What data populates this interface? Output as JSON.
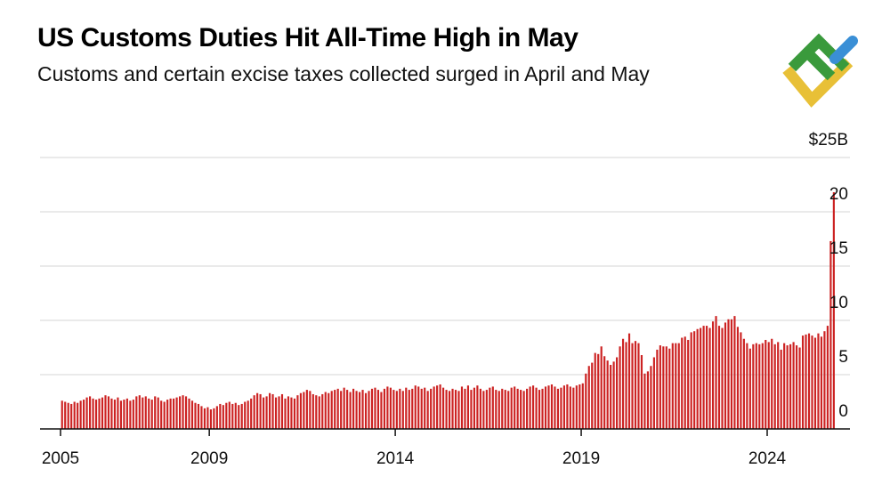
{
  "title": "US Customs Duties Hit All-Time High in May",
  "subtitle": "Customs and certain excise taxes collected surged in April and May",
  "logo": {
    "icon": "brand-logo-icon",
    "colors": [
      "#3a9a3c",
      "#e8c037",
      "#3a8fd6"
    ]
  },
  "chart_data": {
    "type": "bar",
    "title": "US Customs Duties Hit All-Time High in May",
    "subtitle": "Customs and certain excise taxes collected surged in April and May",
    "xlabel": "",
    "ylabel": "",
    "unit": "billions USD, monthly",
    "color": "#cc2222",
    "x_start": "2005-01",
    "x_ticks": [
      {
        "label": "2005",
        "x": 2005
      },
      {
        "label": "2009",
        "x": 2009
      },
      {
        "label": "2014",
        "x": 2014
      },
      {
        "label": "2019",
        "x": 2019
      },
      {
        "label": "2024",
        "x": 2024
      }
    ],
    "y_ticks": [
      {
        "label": "0",
        "value": 0
      },
      {
        "label": "5",
        "value": 5
      },
      {
        "label": "10",
        "value": 10
      },
      {
        "label": "15",
        "value": 15
      },
      {
        "label": "20",
        "value": 20
      },
      {
        "label": "$25B",
        "value": 25
      }
    ],
    "ylim": [
      0,
      25
    ],
    "grid": true,
    "values": [
      2.6,
      2.5,
      2.4,
      2.3,
      2.5,
      2.4,
      2.6,
      2.7,
      2.9,
      3.0,
      2.8,
      2.7,
      2.8,
      2.9,
      3.1,
      3.0,
      2.8,
      2.7,
      2.9,
      2.6,
      2.7,
      2.8,
      2.6,
      2.7,
      3.0,
      3.1,
      2.9,
      3.0,
      2.8,
      2.7,
      3.0,
      2.9,
      2.6,
      2.5,
      2.7,
      2.8,
      2.8,
      2.9,
      3.0,
      3.1,
      3.0,
      2.8,
      2.6,
      2.4,
      2.3,
      2.1,
      1.9,
      2.0,
      1.8,
      1.9,
      2.1,
      2.3,
      2.2,
      2.4,
      2.5,
      2.3,
      2.4,
      2.2,
      2.3,
      2.5,
      2.6,
      2.8,
      3.1,
      3.3,
      3.2,
      2.9,
      3.0,
      3.3,
      3.2,
      2.9,
      3.0,
      3.2,
      2.8,
      3.0,
      2.9,
      2.8,
      3.1,
      3.3,
      3.4,
      3.6,
      3.5,
      3.2,
      3.1,
      3.0,
      3.2,
      3.4,
      3.3,
      3.5,
      3.6,
      3.7,
      3.5,
      3.8,
      3.6,
      3.4,
      3.7,
      3.5,
      3.4,
      3.6,
      3.3,
      3.5,
      3.7,
      3.8,
      3.6,
      3.4,
      3.7,
      3.9,
      3.8,
      3.6,
      3.5,
      3.7,
      3.5,
      3.8,
      3.6,
      3.7,
      4.0,
      3.9,
      3.7,
      3.8,
      3.5,
      3.7,
      3.9,
      4.0,
      4.1,
      3.8,
      3.6,
      3.5,
      3.7,
      3.6,
      3.5,
      3.9,
      3.7,
      4.0,
      3.6,
      3.8,
      4.0,
      3.7,
      3.5,
      3.6,
      3.8,
      3.9,
      3.6,
      3.5,
      3.7,
      3.6,
      3.5,
      3.8,
      3.9,
      3.7,
      3.6,
      3.5,
      3.7,
      3.9,
      4.0,
      3.8,
      3.6,
      3.7,
      3.9,
      4.0,
      4.1,
      3.9,
      3.7,
      3.8,
      4.0,
      4.1,
      3.9,
      3.8,
      4.0,
      4.1,
      4.2,
      5.1,
      5.8,
      6.1,
      7.0,
      6.9,
      7.6,
      6.7,
      6.3,
      5.9,
      6.2,
      6.6,
      7.6,
      8.3,
      8.0,
      8.8,
      7.9,
      8.1,
      7.9,
      6.8,
      5.1,
      5.3,
      5.8,
      6.6,
      7.3,
      7.7,
      7.6,
      7.6,
      7.4,
      7.9,
      7.9,
      7.9,
      8.4,
      8.5,
      8.2,
      8.9,
      9.0,
      9.2,
      9.3,
      9.5,
      9.5,
      9.3,
      9.9,
      10.4,
      9.5,
      9.3,
      9.8,
      10.1,
      10.1,
      10.4,
      9.4,
      8.9,
      8.3,
      7.9,
      7.4,
      7.8,
      7.9,
      7.8,
      7.9,
      8.2,
      8.0,
      8.3,
      7.8,
      8.0,
      7.3,
      7.9,
      7.7,
      7.8,
      8.0,
      7.7,
      7.5,
      8.6,
      8.7,
      8.8,
      8.6,
      8.4,
      8.8,
      8.5,
      9.0,
      9.5,
      17.3,
      21.8
    ]
  }
}
